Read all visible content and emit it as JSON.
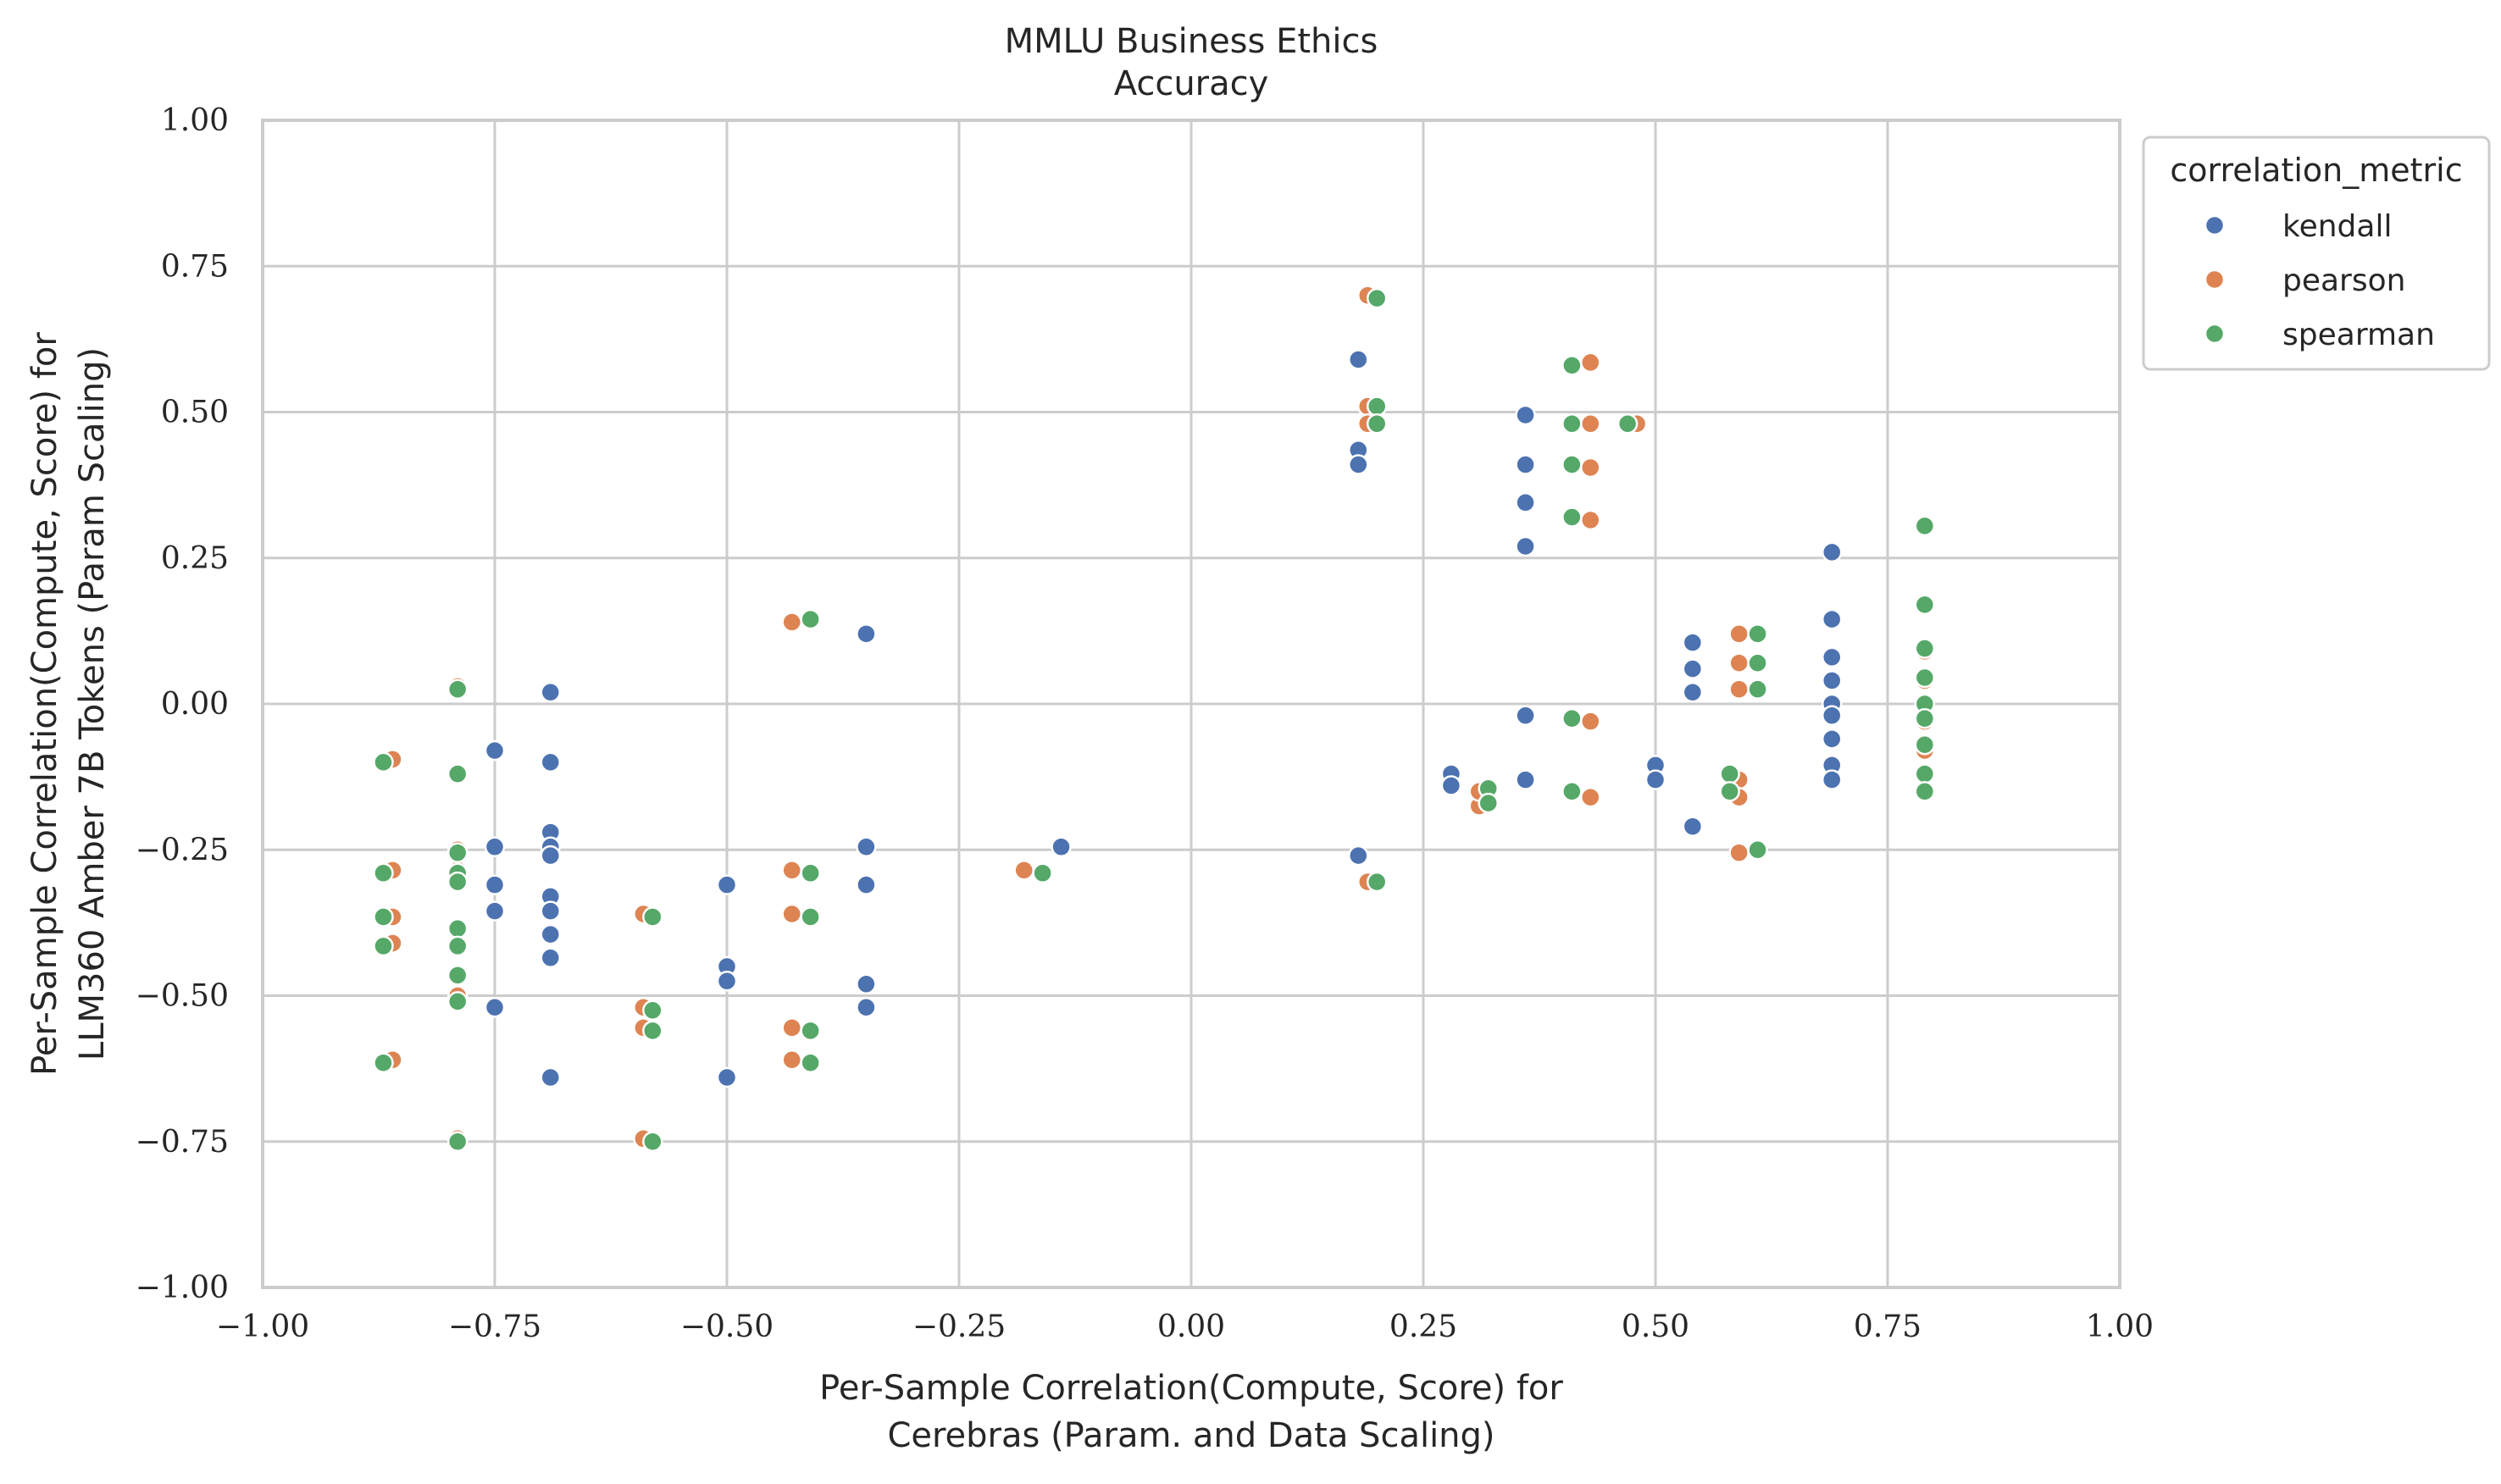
{
  "chart_data": {
    "type": "scatter",
    "title": "MMLU Business Ethics",
    "subtitle": "Accuracy",
    "xlabel_line1": "Per-Sample Correlation(Compute, Score) for",
    "xlabel_line2": "Cerebras (Param. and Data Scaling)",
    "ylabel_line1": "Per-Sample Correlation(Compute, Score) for",
    "ylabel_line2": "LLM360 Amber 7B Tokens (Param Scaling)",
    "xlim": [
      -1.0,
      1.0
    ],
    "ylim": [
      -1.0,
      1.0
    ],
    "xticks": [
      -1.0,
      -0.75,
      -0.5,
      -0.25,
      0.0,
      0.25,
      0.5,
      0.75,
      1.0
    ],
    "yticks": [
      -1.0,
      -0.75,
      -0.5,
      -0.25,
      0.0,
      0.25,
      0.5,
      0.75,
      1.0
    ],
    "xtick_labels": [
      "−1.00",
      "−0.75",
      "−0.50",
      "−0.25",
      "0.00",
      "0.25",
      "0.50",
      "0.75",
      "1.00"
    ],
    "ytick_labels": [
      "−1.00",
      "−0.75",
      "−0.50",
      "−0.25",
      "0.00",
      "0.25",
      "0.50",
      "0.75",
      "1.00"
    ],
    "grid": true,
    "legend": {
      "title": "correlation_metric",
      "placement": "outside-top-right"
    },
    "series": [
      {
        "name": "kendall",
        "color": "#4c72b0",
        "points": [
          [
            -0.75,
            -0.08
          ],
          [
            -0.75,
            -0.245
          ],
          [
            -0.75,
            -0.31
          ],
          [
            -0.75,
            -0.355
          ],
          [
            -0.75,
            -0.52
          ],
          [
            -0.69,
            0.02
          ],
          [
            -0.69,
            -0.1
          ],
          [
            -0.69,
            -0.22
          ],
          [
            -0.69,
            -0.245
          ],
          [
            -0.69,
            -0.26
          ],
          [
            -0.69,
            -0.33
          ],
          [
            -0.69,
            -0.355
          ],
          [
            -0.69,
            -0.395
          ],
          [
            -0.69,
            -0.435
          ],
          [
            -0.69,
            -0.64
          ],
          [
            -0.5,
            -0.31
          ],
          [
            -0.5,
            -0.45
          ],
          [
            -0.5,
            -0.475
          ],
          [
            -0.5,
            -0.64
          ],
          [
            -0.35,
            0.12
          ],
          [
            -0.35,
            -0.245
          ],
          [
            -0.35,
            -0.31
          ],
          [
            -0.35,
            -0.48
          ],
          [
            -0.35,
            -0.52
          ],
          [
            -0.14,
            -0.245
          ],
          [
            0.18,
            0.59
          ],
          [
            0.18,
            0.435
          ],
          [
            0.18,
            0.41
          ],
          [
            0.18,
            -0.26
          ],
          [
            0.28,
            -0.12
          ],
          [
            0.28,
            -0.14
          ],
          [
            0.36,
            0.495
          ],
          [
            0.36,
            0.41
          ],
          [
            0.36,
            0.345
          ],
          [
            0.36,
            0.27
          ],
          [
            0.36,
            -0.02
          ],
          [
            0.36,
            -0.13
          ],
          [
            0.5,
            -0.105
          ],
          [
            0.5,
            -0.13
          ],
          [
            0.54,
            0.105
          ],
          [
            0.54,
            0.06
          ],
          [
            0.54,
            0.02
          ],
          [
            0.54,
            -0.21
          ],
          [
            0.69,
            0.26
          ],
          [
            0.69,
            0.145
          ],
          [
            0.69,
            0.08
          ],
          [
            0.69,
            0.04
          ],
          [
            0.69,
            0.0
          ],
          [
            0.69,
            -0.02
          ],
          [
            0.69,
            -0.06
          ],
          [
            0.69,
            -0.105
          ],
          [
            0.69,
            -0.13
          ]
        ]
      },
      {
        "name": "pearson",
        "color": "#dd8452",
        "points": [
          [
            -0.86,
            -0.095
          ],
          [
            -0.86,
            -0.285
          ],
          [
            -0.86,
            -0.365
          ],
          [
            -0.86,
            -0.41
          ],
          [
            -0.86,
            -0.61
          ],
          [
            -0.79,
            0.03
          ],
          [
            -0.79,
            -0.25
          ],
          [
            -0.79,
            -0.285
          ],
          [
            -0.79,
            -0.5
          ],
          [
            -0.79,
            -0.745
          ],
          [
            -0.59,
            -0.36
          ],
          [
            -0.59,
            -0.52
          ],
          [
            -0.59,
            -0.555
          ],
          [
            -0.59,
            -0.745
          ],
          [
            -0.43,
            0.14
          ],
          [
            -0.43,
            -0.285
          ],
          [
            -0.43,
            -0.36
          ],
          [
            -0.43,
            -0.555
          ],
          [
            -0.43,
            -0.61
          ],
          [
            -0.18,
            -0.285
          ],
          [
            0.19,
            0.7
          ],
          [
            0.19,
            0.51
          ],
          [
            0.19,
            0.48
          ],
          [
            0.19,
            -0.305
          ],
          [
            0.31,
            -0.175
          ],
          [
            0.31,
            -0.15
          ],
          [
            0.43,
            0.585
          ],
          [
            0.43,
            0.48
          ],
          [
            0.43,
            0.405
          ],
          [
            0.43,
            0.315
          ],
          [
            0.43,
            -0.03
          ],
          [
            0.43,
            -0.16
          ],
          [
            0.48,
            0.48
          ],
          [
            0.59,
            0.12
          ],
          [
            0.59,
            0.07
          ],
          [
            0.59,
            0.025
          ],
          [
            0.59,
            -0.13
          ],
          [
            0.59,
            -0.16
          ],
          [
            0.59,
            -0.255
          ],
          [
            0.79,
            0.09
          ],
          [
            0.79,
            0.04
          ],
          [
            0.79,
            -0.03
          ],
          [
            0.79,
            -0.08
          ]
        ]
      },
      {
        "name": "spearman",
        "color": "#55a868",
        "points": [
          [
            -0.87,
            -0.1
          ],
          [
            -0.87,
            -0.29
          ],
          [
            -0.87,
            -0.365
          ],
          [
            -0.87,
            -0.415
          ],
          [
            -0.87,
            -0.615
          ],
          [
            -0.79,
            0.025
          ],
          [
            -0.79,
            -0.12
          ],
          [
            -0.79,
            -0.255
          ],
          [
            -0.79,
            -0.29
          ],
          [
            -0.79,
            -0.305
          ],
          [
            -0.79,
            -0.385
          ],
          [
            -0.79,
            -0.415
          ],
          [
            -0.79,
            -0.465
          ],
          [
            -0.79,
            -0.51
          ],
          [
            -0.79,
            -0.75
          ],
          [
            -0.58,
            -0.365
          ],
          [
            -0.58,
            -0.525
          ],
          [
            -0.58,
            -0.56
          ],
          [
            -0.58,
            -0.75
          ],
          [
            -0.41,
            0.145
          ],
          [
            -0.41,
            -0.29
          ],
          [
            -0.41,
            -0.365
          ],
          [
            -0.41,
            -0.56
          ],
          [
            -0.41,
            -0.615
          ],
          [
            -0.16,
            -0.29
          ],
          [
            0.2,
            0.695
          ],
          [
            0.2,
            0.51
          ],
          [
            0.2,
            0.48
          ],
          [
            0.2,
            -0.305
          ],
          [
            0.32,
            -0.145
          ],
          [
            0.32,
            -0.17
          ],
          [
            0.41,
            0.58
          ],
          [
            0.41,
            0.48
          ],
          [
            0.41,
            0.41
          ],
          [
            0.41,
            0.32
          ],
          [
            0.41,
            -0.025
          ],
          [
            0.41,
            -0.15
          ],
          [
            0.47,
            0.48
          ],
          [
            0.58,
            -0.12
          ],
          [
            0.58,
            -0.15
          ],
          [
            0.61,
            0.12
          ],
          [
            0.61,
            0.07
          ],
          [
            0.61,
            0.025
          ],
          [
            0.61,
            -0.25
          ],
          [
            0.79,
            0.305
          ],
          [
            0.79,
            0.17
          ],
          [
            0.79,
            0.095
          ],
          [
            0.79,
            0.045
          ],
          [
            0.79,
            0.0
          ],
          [
            0.79,
            -0.025
          ],
          [
            0.79,
            -0.07
          ],
          [
            0.79,
            -0.12
          ],
          [
            0.79,
            -0.15
          ]
        ]
      }
    ]
  }
}
